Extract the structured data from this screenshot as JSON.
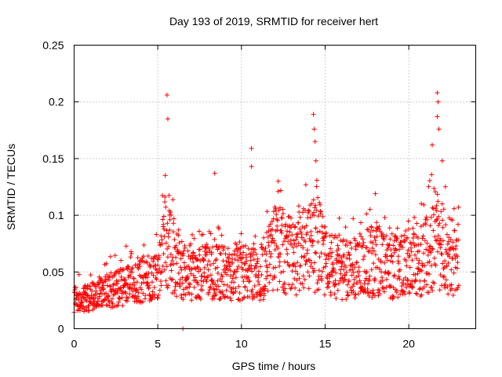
{
  "chart_data": {
    "type": "scatter",
    "title": "Day 193 of 2019, SRMTID for receiver hert",
    "xlabel": "GPS time / hours",
    "ylabel": "SRMTID / TECUs",
    "xlim": [
      0,
      24
    ],
    "ylim": [
      0,
      0.25
    ],
    "xticks": [
      0,
      5,
      10,
      15,
      20
    ],
    "xtick_labels": [
      "0",
      "5",
      "10",
      "15",
      "20"
    ],
    "yticks": [
      0,
      0.05,
      0.1,
      0.15,
      0.2,
      0.25
    ],
    "ytick_labels": [
      "0",
      "0.05",
      "0.1",
      "0.15",
      "0.2",
      "0.25"
    ],
    "grid": true,
    "marker": "+",
    "color": "#ff0000",
    "series_profile": [
      {
        "x": 0.0,
        "y": 0.025
      },
      {
        "x": 1.0,
        "y": 0.028
      },
      {
        "x": 2.0,
        "y": 0.033
      },
      {
        "x": 3.0,
        "y": 0.038
      },
      {
        "x": 4.0,
        "y": 0.042
      },
      {
        "x": 5.0,
        "y": 0.045
      },
      {
        "x": 5.5,
        "y": 0.08
      },
      {
        "x": 6.0,
        "y": 0.058
      },
      {
        "x": 7.0,
        "y": 0.045
      },
      {
        "x": 8.0,
        "y": 0.05
      },
      {
        "x": 9.0,
        "y": 0.048
      },
      {
        "x": 10.0,
        "y": 0.05
      },
      {
        "x": 11.0,
        "y": 0.045
      },
      {
        "x": 12.0,
        "y": 0.07
      },
      {
        "x": 13.0,
        "y": 0.065
      },
      {
        "x": 14.0,
        "y": 0.068
      },
      {
        "x": 14.5,
        "y": 0.08
      },
      {
        "x": 15.0,
        "y": 0.06
      },
      {
        "x": 16.0,
        "y": 0.052
      },
      {
        "x": 17.0,
        "y": 0.055
      },
      {
        "x": 18.0,
        "y": 0.06
      },
      {
        "x": 19.0,
        "y": 0.055
      },
      {
        "x": 20.0,
        "y": 0.058
      },
      {
        "x": 21.0,
        "y": 0.065
      },
      {
        "x": 21.5,
        "y": 0.08
      },
      {
        "x": 22.0,
        "y": 0.07
      },
      {
        "x": 23.0,
        "y": 0.06
      }
    ],
    "peaks": [
      {
        "x": 5.55,
        "y": 0.206
      },
      {
        "x": 5.6,
        "y": 0.185
      },
      {
        "x": 8.4,
        "y": 0.137
      },
      {
        "x": 10.6,
        "y": 0.159
      },
      {
        "x": 10.6,
        "y": 0.143
      },
      {
        "x": 12.2,
        "y": 0.13
      },
      {
        "x": 14.3,
        "y": 0.189
      },
      {
        "x": 14.35,
        "y": 0.176
      },
      {
        "x": 14.4,
        "y": 0.165
      },
      {
        "x": 14.45,
        "y": 0.148
      },
      {
        "x": 18.0,
        "y": 0.119
      },
      {
        "x": 21.4,
        "y": 0.162
      },
      {
        "x": 21.7,
        "y": 0.208
      },
      {
        "x": 21.75,
        "y": 0.2
      },
      {
        "x": 21.7,
        "y": 0.187
      },
      {
        "x": 21.8,
        "y": 0.176
      },
      {
        "x": 22.0,
        "y": 0.148
      },
      {
        "x": 6.5,
        "y": 0.0
      }
    ]
  }
}
